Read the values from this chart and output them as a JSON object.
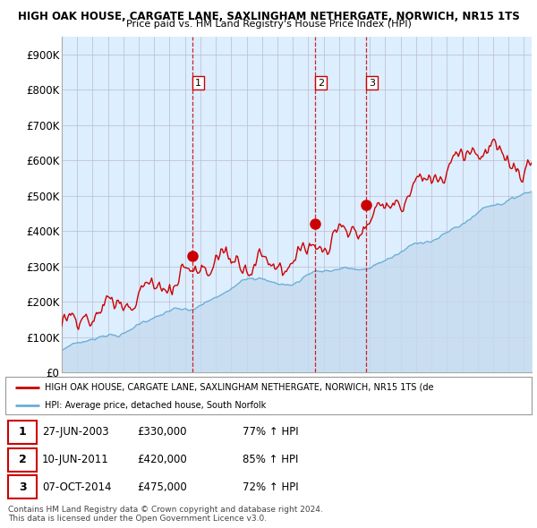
{
  "title1": "HIGH OAK HOUSE, CARGATE LANE, SAXLINGHAM NETHERGATE, NORWICH, NR15 1TS",
  "title2": "Price paid vs. HM Land Registry's House Price Index (HPI)",
  "ylabel_ticks": [
    "£0",
    "£100K",
    "£200K",
    "£300K",
    "£400K",
    "£500K",
    "£600K",
    "£700K",
    "£800K",
    "£900K"
  ],
  "ytick_values": [
    0,
    100000,
    200000,
    300000,
    400000,
    500000,
    600000,
    700000,
    800000,
    900000
  ],
  "ylim": [
    0,
    950000
  ],
  "sale_years": [
    2003.5,
    2011.45,
    2014.77
  ],
  "sale_prices": [
    330000,
    420000,
    475000
  ],
  "sale_label_info": [
    [
      "1",
      "27-JUN-2003",
      "£330,000",
      "77% ↑ HPI"
    ],
    [
      "2",
      "10-JUN-2011",
      "£420,000",
      "85% ↑ HPI"
    ],
    [
      "3",
      "07-OCT-2014",
      "£475,000",
      "72% ↑ HPI"
    ]
  ],
  "legend_line1": "HIGH OAK HOUSE, CARGATE LANE, SAXLINGHAM NETHERGATE, NORWICH, NR15 1TS (de",
  "legend_line2": "HPI: Average price, detached house, South Norfolk",
  "footer1": "Contains HM Land Registry data © Crown copyright and database right 2024.",
  "footer2": "This data is licensed under the Open Government Licence v3.0.",
  "hpi_color": "#6baed6",
  "hpi_fill_color": "#c6dbef",
  "price_color": "#cc0000",
  "vline_color": "#cc0000",
  "bg_color": "#ffffff",
  "chart_bg_color": "#ddeeff",
  "grid_color": "#bbbbcc",
  "xlim_start": 1995.0,
  "xlim_end": 2025.5
}
